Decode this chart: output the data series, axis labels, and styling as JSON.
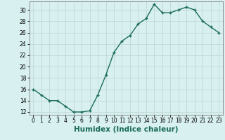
{
  "title": "",
  "xlabel": "Humidex (Indice chaleur)",
  "ylabel": "",
  "x": [
    0,
    1,
    2,
    3,
    4,
    5,
    6,
    7,
    8,
    9,
    10,
    11,
    12,
    13,
    14,
    15,
    16,
    17,
    18,
    19,
    20,
    21,
    22,
    23
  ],
  "y": [
    16,
    15,
    14,
    14,
    13,
    12,
    12,
    12.2,
    15,
    18.5,
    22.5,
    24.5,
    25.5,
    27.5,
    28.5,
    31,
    29.5,
    29.5,
    30,
    30.5,
    30,
    28,
    27,
    26
  ],
  "ylim": [
    11.5,
    31.5
  ],
  "yticks": [
    12,
    14,
    16,
    18,
    20,
    22,
    24,
    26,
    28,
    30
  ],
  "xticks": [
    0,
    1,
    2,
    3,
    4,
    5,
    6,
    7,
    8,
    9,
    10,
    11,
    12,
    13,
    14,
    15,
    16,
    17,
    18,
    19,
    20,
    21,
    22,
    23
  ],
  "line_color": "#1a6b5a",
  "marker": "+",
  "marker_size": 3.5,
  "marker_lw": 1.0,
  "bg_color": "#d8f0f0",
  "grid_color": "#c0d8d8",
  "spine_color": "#888888",
  "tick_label_fontsize": 5.5,
  "xlabel_fontsize": 7.5,
  "line_width": 1.0
}
